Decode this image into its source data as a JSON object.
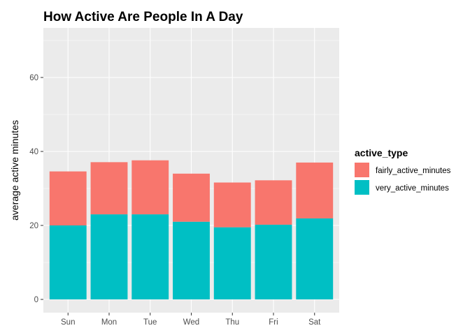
{
  "chart_data": {
    "type": "bar",
    "stacked": true,
    "title": "How Active Are People In A Day",
    "xlabel": "",
    "ylabel": "average active minutes",
    "categories": [
      "Sun",
      "Mon",
      "Tue",
      "Wed",
      "Thu",
      "Fri",
      "Sat"
    ],
    "series": [
      {
        "name": "very_active_minutes",
        "color": "#00BFC4",
        "values": [
          20.0,
          23.0,
          23.0,
          21.0,
          19.5,
          20.2,
          21.9
        ]
      },
      {
        "name": "fairly_active_minutes",
        "color": "#F8766D",
        "values": [
          14.6,
          14.1,
          14.6,
          13.0,
          12.1,
          12.0,
          15.1
        ]
      }
    ],
    "ylim": [
      0,
      72
    ],
    "yticks": [
      "0",
      "20",
      "40",
      "60"
    ],
    "ytick_values": [
      0,
      20,
      40,
      60
    ],
    "grid": true,
    "panel_background": "#EBEBEB",
    "legend": {
      "title": "active_type",
      "position": "right",
      "entries": [
        {
          "label": "fairly_active_minutes",
          "color": "#F8766D"
        },
        {
          "label": "very_active_minutes",
          "color": "#00BFC4"
        }
      ]
    }
  }
}
